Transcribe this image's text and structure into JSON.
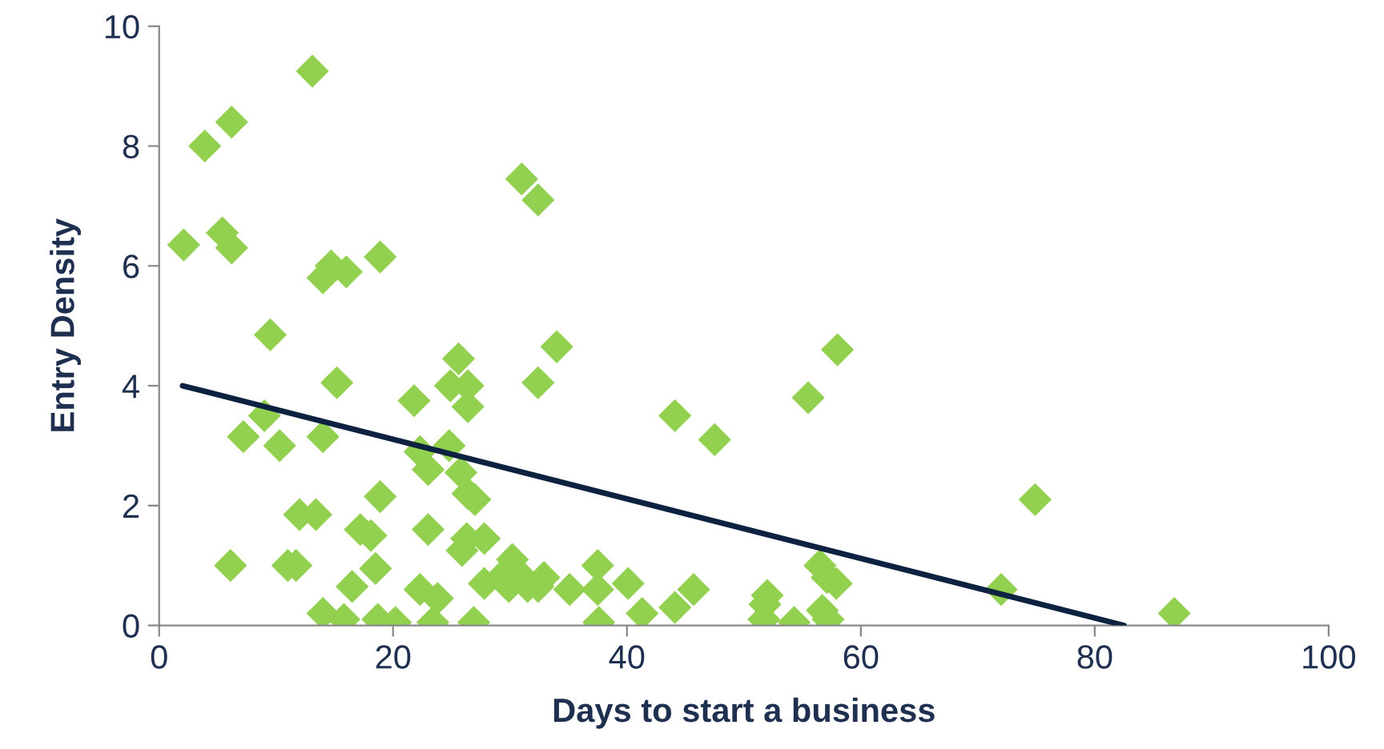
{
  "chart_data": {
    "type": "scatter",
    "xlabel": "Days to start a business",
    "ylabel": "Entry Density",
    "xlim": [
      0,
      100
    ],
    "xticks": [
      0,
      20,
      40,
      60,
      80,
      100
    ],
    "ylim": [
      0,
      10
    ],
    "yticks": [
      0,
      2,
      4,
      6,
      8,
      10
    ],
    "grid": false,
    "series": [
      {
        "marker": "diamond",
        "color": "#92d050",
        "x": [
          2.1,
          3.9,
          6.2,
          5.4,
          6.2,
          13.1,
          9.5,
          7.2,
          9.0,
          10.3,
          6.1,
          11.0,
          11.7,
          12.0,
          13.4,
          14.0,
          15.8,
          14.0,
          14.7,
          16.0,
          18.9,
          15.2,
          14.0,
          16.5,
          17.2,
          18.1,
          18.9,
          18.5,
          18.7,
          20.2,
          21.8,
          22.3,
          22.3,
          23.0,
          23.0,
          23.4,
          23.8,
          24.9,
          25.6,
          26.4,
          26.4,
          24.8,
          25.8,
          26.4,
          27.0,
          25.9,
          26.3,
          27.8,
          26.9,
          27.8,
          29.2,
          29.9,
          30.6,
          31.5,
          32.4,
          30.2,
          31.0,
          32.4,
          32.4,
          34.0,
          32.9,
          35.1,
          37.5,
          37.5,
          37.6,
          40.1,
          41.3,
          44.1,
          44.1,
          45.7,
          47.5,
          51.8,
          51.7,
          52.0,
          54.3,
          55.5,
          56.5,
          57.1,
          57.9,
          56.7,
          57.2,
          58.0,
          72.0,
          74.9,
          86.8
        ],
        "values": [
          6.35,
          8.0,
          8.4,
          6.55,
          6.3,
          9.25,
          4.85,
          3.15,
          3.5,
          3.0,
          1.0,
          1.0,
          1.0,
          1.85,
          1.85,
          0.2,
          0.1,
          5.8,
          6.0,
          5.9,
          6.15,
          4.05,
          3.15,
          0.65,
          1.6,
          1.5,
          2.15,
          0.95,
          0.1,
          0.05,
          3.75,
          0.6,
          2.9,
          2.6,
          1.6,
          0.05,
          0.45,
          4.0,
          4.45,
          4.0,
          3.65,
          3.0,
          2.55,
          2.2,
          2.1,
          1.25,
          1.45,
          1.45,
          0.05,
          0.7,
          0.8,
          0.65,
          0.9,
          0.65,
          0.65,
          1.1,
          7.45,
          7.1,
          4.05,
          4.65,
          0.8,
          0.6,
          1.0,
          0.6,
          0.05,
          0.7,
          0.2,
          3.5,
          0.3,
          0.6,
          3.1,
          0.35,
          0.1,
          0.5,
          0.05,
          3.8,
          1.0,
          0.8,
          0.7,
          0.25,
          0.1,
          4.6,
          0.6,
          2.1,
          0.2
        ]
      },
      {
        "type": "line",
        "color": "#0d2240",
        "x": [
          2,
          82.5
        ],
        "values": [
          4.0,
          0
        ]
      }
    ]
  }
}
